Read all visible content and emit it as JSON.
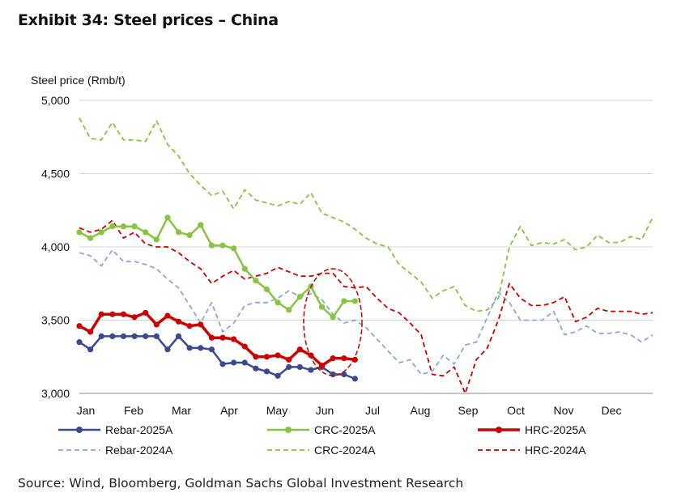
{
  "header": {
    "title": "Exhibit 34: Steel prices – China"
  },
  "footer": {
    "source": "Source: Wind, Bloomberg, Goldman Sachs Global Investment Research"
  },
  "chart_data": {
    "type": "line",
    "ylabel": "Steel price (Rmb/t)",
    "ylim": [
      3000,
      5000
    ],
    "yticks": [
      3000,
      3500,
      4000,
      4500,
      5000
    ],
    "ytick_labels": [
      "3,000",
      "3,500",
      "4,000",
      "4,500",
      "5,000"
    ],
    "months": [
      "Jan",
      "Feb",
      "Mar",
      "Apr",
      "May",
      "Jun",
      "Jul",
      "Aug",
      "Sep",
      "Oct",
      "Nov",
      "Dec"
    ],
    "x_unit": "week",
    "xlim": [
      0,
      52
    ],
    "grid": "horizontal",
    "legend_position": "bottom",
    "highlight": "ellipse around June",
    "colors": {
      "rebar": "#3a4a8c",
      "rebar_2024": "#8aa6dc",
      "crc": "#86c442",
      "hrc": "#cc0000"
    },
    "series": [
      {
        "name": "Rebar-2025A",
        "style": "solid-markers",
        "color": "#3a4a8c",
        "x": [
          0,
          1,
          2,
          3,
          4,
          5,
          6,
          7,
          8,
          9,
          10,
          11,
          12,
          13,
          14,
          15,
          16,
          17,
          18,
          19,
          20,
          21,
          22,
          23,
          24,
          25
        ],
        "values": [
          3350,
          3300,
          3390,
          3390,
          3390,
          3390,
          3390,
          3390,
          3300,
          3390,
          3310,
          3310,
          3300,
          3200,
          3210,
          3210,
          3170,
          3150,
          3120,
          3180,
          3180,
          3160,
          3180,
          3130,
          3130,
          3100
        ]
      },
      {
        "name": "CRC-2025A",
        "style": "solid-markers",
        "color": "#86c442",
        "x": [
          0,
          1,
          2,
          3,
          4,
          5,
          6,
          7,
          8,
          9,
          10,
          11,
          12,
          13,
          14,
          15,
          16,
          17,
          18,
          19,
          20,
          21,
          22,
          23,
          24,
          25
        ],
        "values": [
          4100,
          4060,
          4100,
          4140,
          4140,
          4140,
          4100,
          4050,
          4200,
          4100,
          4080,
          4150,
          4010,
          4010,
          3990,
          3850,
          3770,
          3710,
          3620,
          3570,
          3660,
          3730,
          3590,
          3520,
          3630,
          3630
        ]
      },
      {
        "name": "HRC-2025A",
        "style": "solid-markers",
        "color": "#cc0000",
        "x": [
          0,
          1,
          2,
          3,
          4,
          5,
          6,
          7,
          8,
          9,
          10,
          11,
          12,
          13,
          14,
          15,
          16,
          17,
          18,
          19,
          20,
          21,
          22,
          23,
          24,
          25
        ],
        "values": [
          3460,
          3420,
          3540,
          3540,
          3540,
          3520,
          3550,
          3470,
          3530,
          3490,
          3460,
          3470,
          3380,
          3380,
          3370,
          3320,
          3250,
          3250,
          3260,
          3230,
          3300,
          3260,
          3190,
          3240,
          3240,
          3230
        ]
      },
      {
        "name": "Rebar-2024A",
        "style": "dashed",
        "color": "#8aa6dc",
        "x": [
          0,
          1,
          2,
          3,
          4,
          5,
          6,
          7,
          8,
          9,
          10,
          11,
          12,
          13,
          14,
          15,
          16,
          17,
          18,
          19,
          20,
          21,
          22,
          23,
          24,
          25,
          26,
          27,
          28,
          29,
          30,
          31,
          32,
          33,
          34,
          35,
          36,
          37,
          38,
          39,
          40,
          41,
          42,
          43,
          44,
          45,
          46,
          47,
          48,
          49,
          50,
          51,
          52
        ],
        "values": [
          3960,
          3940,
          3870,
          3980,
          3900,
          3900,
          3880,
          3850,
          3780,
          3720,
          3600,
          3480,
          3620,
          3420,
          3480,
          3600,
          3620,
          3620,
          3650,
          3700,
          3660,
          3680,
          3640,
          3540,
          3480,
          3500,
          3450,
          3370,
          3290,
          3210,
          3230,
          3130,
          3150,
          3260,
          3200,
          3330,
          3350,
          3520,
          3690,
          3620,
          3500,
          3500,
          3500,
          3560,
          3400,
          3420,
          3460,
          3410,
          3410,
          3420,
          3400,
          3350,
          3400
        ]
      },
      {
        "name": "CRC-2024A",
        "style": "dashed",
        "color": "#86c442",
        "x": [
          0,
          1,
          2,
          3,
          4,
          5,
          6,
          7,
          8,
          9,
          10,
          11,
          12,
          13,
          14,
          15,
          16,
          17,
          18,
          19,
          20,
          21,
          22,
          23,
          24,
          25,
          26,
          27,
          28,
          29,
          30,
          31,
          32,
          33,
          34,
          35,
          36,
          37,
          38,
          39,
          40,
          41,
          42,
          43,
          44,
          45,
          46,
          47,
          48,
          49,
          50,
          51,
          52
        ],
        "values": [
          4880,
          4740,
          4730,
          4850,
          4730,
          4730,
          4720,
          4860,
          4700,
          4620,
          4500,
          4420,
          4350,
          4380,
          4260,
          4390,
          4320,
          4300,
          4280,
          4310,
          4290,
          4370,
          4230,
          4200,
          4170,
          4120,
          4060,
          4020,
          4000,
          3880,
          3820,
          3760,
          3650,
          3700,
          3730,
          3600,
          3560,
          3570,
          3650,
          4000,
          4140,
          4010,
          4030,
          4020,
          4050,
          3980,
          4000,
          4080,
          4030,
          4030,
          4070,
          4050,
          4200
        ]
      },
      {
        "name": "HRC-2024A",
        "style": "dashed",
        "color": "#cc0000",
        "x": [
          0,
          1,
          2,
          3,
          4,
          5,
          6,
          7,
          8,
          9,
          10,
          11,
          12,
          13,
          14,
          15,
          16,
          17,
          18,
          19,
          20,
          21,
          22,
          23,
          24,
          25,
          26,
          27,
          28,
          29,
          30,
          31,
          32,
          33,
          34,
          35,
          36,
          37,
          38,
          39,
          40,
          41,
          42,
          43,
          44,
          45,
          46,
          47,
          48,
          49,
          50,
          51,
          52
        ],
        "values": [
          4130,
          4100,
          4120,
          4180,
          4060,
          4100,
          4020,
          4000,
          4000,
          3960,
          3900,
          3850,
          3750,
          3800,
          3840,
          3780,
          3800,
          3820,
          3860,
          3830,
          3800,
          3800,
          3820,
          3820,
          3730,
          3720,
          3730,
          3650,
          3580,
          3550,
          3480,
          3400,
          3130,
          3120,
          3180,
          3000,
          3230,
          3310,
          3500,
          3750,
          3650,
          3600,
          3600,
          3620,
          3660,
          3490,
          3520,
          3580,
          3560,
          3560,
          3560,
          3540,
          3550
        ]
      }
    ]
  }
}
